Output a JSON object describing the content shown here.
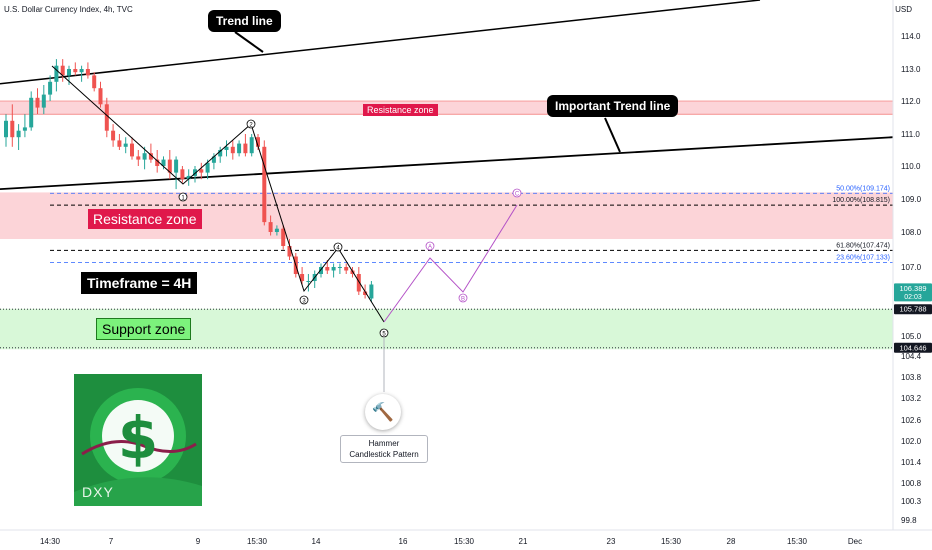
{
  "header": {
    "title": "U.S. Dollar Currency Index, 4h, TVC",
    "currency": "USD"
  },
  "chart_data": {
    "type": "candlestick",
    "yticks": [
      114.0,
      113.0,
      112.0,
      111.0,
      110.0,
      109.0,
      108.0,
      107.0,
      105.0,
      104.4,
      103.8,
      103.2,
      102.6,
      102.0,
      101.4,
      100.8,
      100.3,
      99.8
    ],
    "xticks": [
      "14:30",
      "7",
      "9",
      "15:30",
      "14",
      "16",
      "15:30",
      "21",
      "23",
      "15:30",
      "28",
      "15:30",
      "Dec"
    ],
    "candles": [
      {
        "o": 110.9,
        "h": 111.6,
        "l": 110.6,
        "c": 111.4
      },
      {
        "o": 111.4,
        "h": 111.9,
        "l": 110.6,
        "c": 110.9
      },
      {
        "o": 110.9,
        "h": 111.3,
        "l": 110.5,
        "c": 111.1
      },
      {
        "o": 111.1,
        "h": 111.6,
        "l": 110.9,
        "c": 111.2
      },
      {
        "o": 111.2,
        "h": 112.3,
        "l": 111.1,
        "c": 112.1
      },
      {
        "o": 112.1,
        "h": 112.4,
        "l": 111.6,
        "c": 111.8
      },
      {
        "o": 111.8,
        "h": 112.5,
        "l": 111.6,
        "c": 112.2
      },
      {
        "o": 112.2,
        "h": 112.8,
        "l": 112.0,
        "c": 112.6
      },
      {
        "o": 112.6,
        "h": 113.3,
        "l": 112.3,
        "c": 113.1
      },
      {
        "o": 113.1,
        "h": 113.3,
        "l": 112.6,
        "c": 112.8
      },
      {
        "o": 112.8,
        "h": 113.1,
        "l": 112.5,
        "c": 113.0
      },
      {
        "o": 113.0,
        "h": 113.2,
        "l": 112.8,
        "c": 112.9
      },
      {
        "o": 112.9,
        "h": 113.1,
        "l": 112.6,
        "c": 113.0
      },
      {
        "o": 113.0,
        "h": 113.2,
        "l": 112.7,
        "c": 112.8
      },
      {
        "o": 112.8,
        "h": 112.9,
        "l": 112.3,
        "c": 112.4
      },
      {
        "o": 112.4,
        "h": 112.6,
        "l": 111.8,
        "c": 111.9
      },
      {
        "o": 111.9,
        "h": 112.1,
        "l": 110.9,
        "c": 111.1
      },
      {
        "o": 111.1,
        "h": 111.3,
        "l": 110.6,
        "c": 110.8
      },
      {
        "o": 110.8,
        "h": 111.0,
        "l": 110.5,
        "c": 110.6
      },
      {
        "o": 110.6,
        "h": 110.9,
        "l": 110.4,
        "c": 110.7
      },
      {
        "o": 110.7,
        "h": 110.9,
        "l": 110.2,
        "c": 110.3
      },
      {
        "o": 110.3,
        "h": 110.5,
        "l": 110.0,
        "c": 110.2
      },
      {
        "o": 110.2,
        "h": 110.6,
        "l": 109.9,
        "c": 110.4
      },
      {
        "o": 110.4,
        "h": 110.7,
        "l": 110.1,
        "c": 110.2
      },
      {
        "o": 110.2,
        "h": 110.5,
        "l": 109.8,
        "c": 110.0
      },
      {
        "o": 110.0,
        "h": 110.3,
        "l": 109.9,
        "c": 110.2
      },
      {
        "o": 110.2,
        "h": 110.5,
        "l": 109.6,
        "c": 109.8
      },
      {
        "o": 109.8,
        "h": 110.3,
        "l": 109.3,
        "c": 110.2
      },
      {
        "o": 109.9,
        "h": 110.0,
        "l": 109.5,
        "c": 109.6
      },
      {
        "o": 109.6,
        "h": 109.9,
        "l": 109.4,
        "c": 109.7
      },
      {
        "o": 109.7,
        "h": 110.0,
        "l": 109.5,
        "c": 109.9
      },
      {
        "o": 109.9,
        "h": 110.1,
        "l": 109.6,
        "c": 109.8
      },
      {
        "o": 109.8,
        "h": 110.2,
        "l": 109.6,
        "c": 110.1
      },
      {
        "o": 110.1,
        "h": 110.4,
        "l": 109.9,
        "c": 110.3
      },
      {
        "o": 110.3,
        "h": 110.6,
        "l": 110.1,
        "c": 110.5
      },
      {
        "o": 110.5,
        "h": 110.8,
        "l": 110.3,
        "c": 110.6
      },
      {
        "o": 110.6,
        "h": 110.8,
        "l": 110.2,
        "c": 110.4
      },
      {
        "o": 110.4,
        "h": 110.8,
        "l": 110.3,
        "c": 110.7
      },
      {
        "o": 110.7,
        "h": 111.0,
        "l": 110.3,
        "c": 110.4
      },
      {
        "o": 110.4,
        "h": 111.0,
        "l": 110.3,
        "c": 110.9
      },
      {
        "o": 110.9,
        "h": 111.0,
        "l": 110.5,
        "c": 110.6
      },
      {
        "o": 110.6,
        "h": 110.8,
        "l": 108.2,
        "c": 108.3
      },
      {
        "o": 108.3,
        "h": 108.5,
        "l": 107.9,
        "c": 108.0
      },
      {
        "o": 108.0,
        "h": 108.2,
        "l": 107.9,
        "c": 108.1
      },
      {
        "o": 108.1,
        "h": 108.2,
        "l": 107.5,
        "c": 107.6
      },
      {
        "o": 107.6,
        "h": 107.8,
        "l": 107.2,
        "c": 107.3
      },
      {
        "o": 107.3,
        "h": 107.4,
        "l": 106.7,
        "c": 106.8
      },
      {
        "o": 106.8,
        "h": 107.0,
        "l": 106.5,
        "c": 106.6
      },
      {
        "o": 106.6,
        "h": 106.8,
        "l": 106.3,
        "c": 106.6
      },
      {
        "o": 106.6,
        "h": 106.9,
        "l": 106.4,
        "c": 106.8
      },
      {
        "o": 106.8,
        "h": 107.1,
        "l": 106.7,
        "c": 107.0
      },
      {
        "o": 107.0,
        "h": 107.2,
        "l": 106.8,
        "c": 106.9
      },
      {
        "o": 106.9,
        "h": 107.1,
        "l": 106.7,
        "c": 107.0
      },
      {
        "o": 107.0,
        "h": 107.1,
        "l": 106.8,
        "c": 107.0
      },
      {
        "o": 107.0,
        "h": 107.1,
        "l": 106.8,
        "c": 106.9
      },
      {
        "o": 106.9,
        "h": 107.0,
        "l": 106.7,
        "c": 106.8
      },
      {
        "o": 106.8,
        "h": 107.0,
        "l": 106.2,
        "c": 106.3
      },
      {
        "o": 106.3,
        "h": 106.5,
        "l": 106.1,
        "c": 106.2
      },
      {
        "o": 106.1,
        "h": 106.6,
        "l": 106.0,
        "c": 106.5
      }
    ],
    "levels": [
      {
        "value": 109.174,
        "label": "50.00%(109.174)",
        "color": "#2962ff",
        "style": "dashed"
      },
      {
        "value": 108.815,
        "label": "100.00%(108.815)",
        "color": "#000000",
        "style": "dashed"
      },
      {
        "value": 107.474,
        "label": "61.80%(107.474)",
        "color": "#000000",
        "style": "dashed"
      },
      {
        "value": 107.133,
        "label": "23.60%(107.133)",
        "color": "#2962ff",
        "style": "dashed"
      }
    ],
    "price_tags": [
      {
        "value": 106.389,
        "text": "106.389",
        "sub": "02:03",
        "color": "#26a69a"
      },
      {
        "value": 105.788,
        "text": "105.788",
        "color": "#131722"
      },
      {
        "value": 104.646,
        "text": "104.646",
        "color": "#131722"
      }
    ],
    "zones": [
      {
        "label": "Resistance zone",
        "top": 112.0,
        "bottom": 111.6,
        "color": "#fcd4d8"
      },
      {
        "label": "Resistance zone",
        "top": 109.2,
        "bottom": 107.8,
        "color": "#fcd4d8"
      },
      {
        "label": "Support zone",
        "top": 105.8,
        "bottom": 104.6,
        "color": "#d8f8d8"
      }
    ],
    "wave_labels": [
      "1",
      "2",
      "3",
      "4",
      "5"
    ],
    "projection_labels": [
      "A",
      "B",
      "C"
    ]
  },
  "annotations": {
    "trend_line": "Trend line",
    "important_trend_line": "Important Trend line",
    "resistance_zone": "Resistance zone",
    "timeframe": "Timeframe = 4H",
    "support_zone": "Support zone",
    "hammer_line1": "Hammer",
    "hammer_line2": "Candlestick Pattern"
  },
  "logo": {
    "text": "DXY"
  },
  "colors": {
    "up": "#26a69a",
    "down": "#ef5350"
  }
}
